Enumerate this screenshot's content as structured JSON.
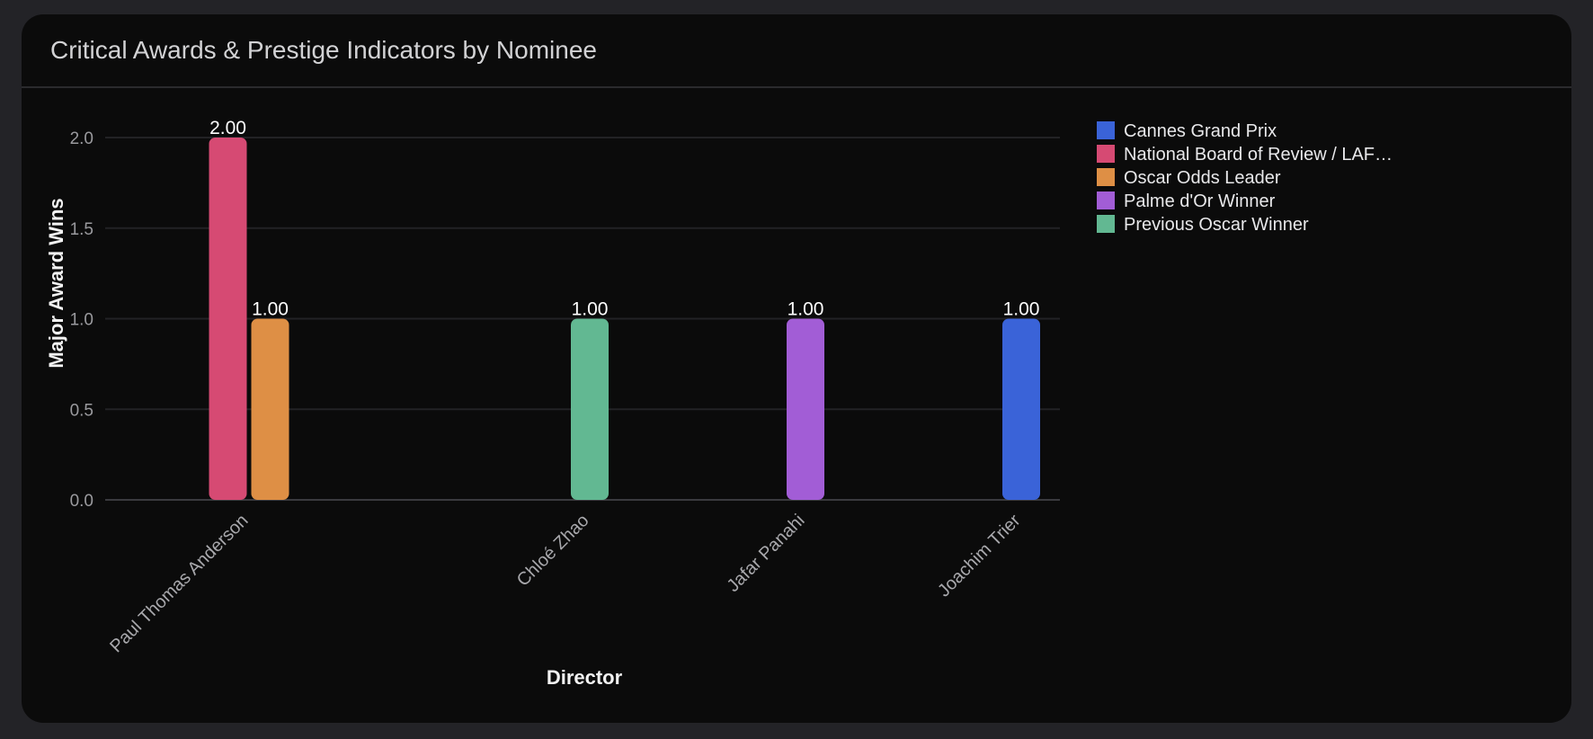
{
  "card": {
    "title": "Critical Awards & Prestige Indicators by Nominee"
  },
  "chart_data": {
    "type": "bar",
    "title": "Critical Awards & Prestige Indicators by Nominee",
    "xlabel": "Director",
    "ylabel": "Major Award Wins",
    "ylim": [
      0,
      2
    ],
    "yticks": [
      "0.0",
      "0.5",
      "1.0",
      "1.5",
      "2.0"
    ],
    "grid": true,
    "legend_position": "right",
    "categories": [
      "Paul Thomas Anderson",
      "Chloé Zhao",
      "Jafar Panahi",
      "Joachim Trier"
    ],
    "series": [
      {
        "name": "Cannes Grand Prix",
        "color": "#3a63d8",
        "values": [
          null,
          null,
          null,
          1
        ]
      },
      {
        "name": "National Board of Review / LAF…",
        "color": "#d64a73",
        "values": [
          2,
          null,
          null,
          null
        ]
      },
      {
        "name": "Oscar Odds Leader",
        "color": "#de8f45",
        "values": [
          1,
          null,
          null,
          null
        ]
      },
      {
        "name": "Palme d'Or Winner",
        "color": "#a25dd6",
        "values": [
          null,
          null,
          1,
          null
        ]
      },
      {
        "name": "Previous Oscar Winner",
        "color": "#62b892",
        "values": [
          null,
          1,
          null,
          null
        ]
      }
    ],
    "bar_labels": [
      {
        "category": "Paul Thomas Anderson",
        "series": "National Board of Review / LAF…",
        "text": "2.00"
      },
      {
        "category": "Paul Thomas Anderson",
        "series": "Oscar Odds Leader",
        "text": "1.00"
      },
      {
        "category": "Chloé Zhao",
        "series": "Previous Oscar Winner",
        "text": "1.00"
      },
      {
        "category": "Jafar Panahi",
        "series": "Palme d'Or Winner",
        "text": "1.00"
      },
      {
        "category": "Joachim Trier",
        "series": "Cannes Grand Prix",
        "text": "1.00"
      }
    ]
  }
}
